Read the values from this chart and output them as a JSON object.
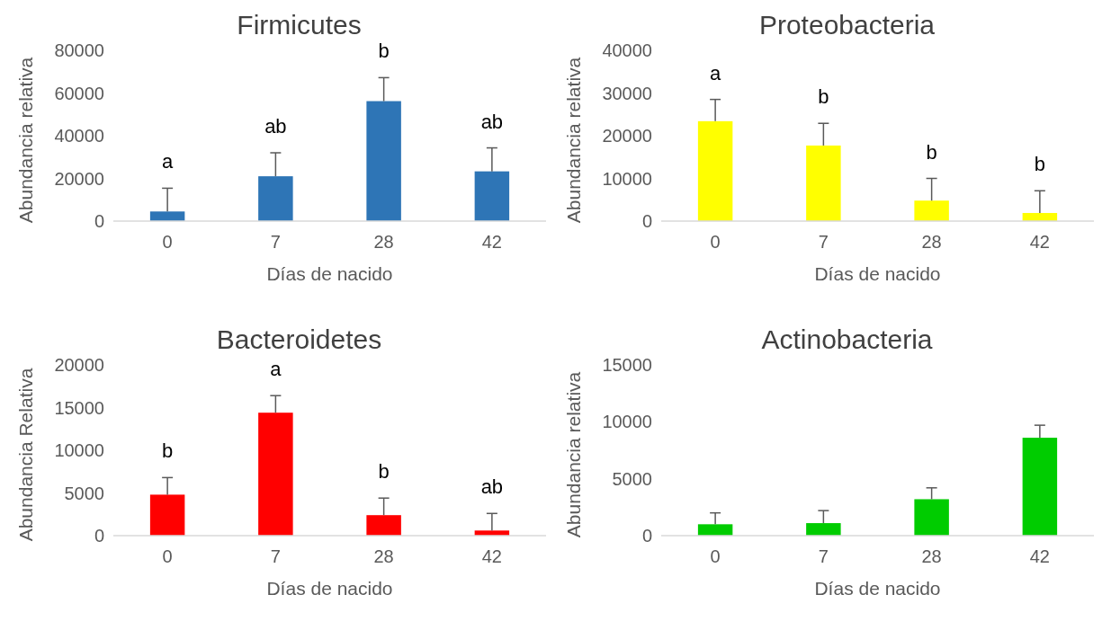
{
  "chart_data": [
    {
      "type": "bar",
      "title": "Firmicutes",
      "xlabel": "Días de nacido",
      "ylabel": "Abundancia relativa",
      "categories": [
        "0",
        "7",
        "28",
        "42"
      ],
      "color": "#2e75b6",
      "values": [
        4500,
        21000,
        56200,
        23300
      ],
      "errors": [
        [
          4500,
          15400
        ],
        [
          21000,
          32000
        ],
        [
          56200,
          67200
        ],
        [
          23300,
          34300
        ]
      ],
      "ylim": [
        0,
        80000
      ],
      "yticks": [
        0,
        20000,
        40000,
        60000,
        80000
      ],
      "annotations": [
        "a",
        "ab",
        "b",
        "ab"
      ]
    },
    {
      "type": "bar",
      "title": "Proteobacteria",
      "xlabel": "Días de nacido",
      "ylabel": "Abundancia relativa",
      "categories": [
        "0",
        "7",
        "28",
        "42"
      ],
      "color": "#ffff00",
      "values": [
        23400,
        17700,
        4800,
        1900
      ],
      "errors": [
        [
          23400,
          28500
        ],
        [
          17700,
          22900
        ],
        [
          4800,
          10000
        ],
        [
          1900,
          7100
        ]
      ],
      "ylim": [
        0,
        40000
      ],
      "yticks": [
        0,
        10000,
        20000,
        30000,
        40000
      ],
      "annotations": [
        "a",
        "b",
        "b",
        "b"
      ]
    },
    {
      "type": "bar",
      "title": "Bacteroidetes",
      "xlabel": "Días de nacido",
      "ylabel": "Abundancia Relativa",
      "categories": [
        "0",
        "7",
        "28",
        "42"
      ],
      "color": "#ff0000",
      "values": [
        4800,
        14400,
        2400,
        600
      ],
      "errors": [
        [
          4800,
          6800
        ],
        [
          14400,
          16400
        ],
        [
          2400,
          4400
        ],
        [
          600,
          2600
        ]
      ],
      "ylim": [
        0,
        20000
      ],
      "yticks": [
        0,
        5000,
        10000,
        15000,
        20000
      ],
      "annotations": [
        "b",
        "a",
        "b",
        "ab"
      ]
    },
    {
      "type": "bar",
      "title": "Actinobacteria",
      "xlabel": "Días de nacido",
      "ylabel": "Abundancia relativa",
      "categories": [
        "0",
        "7",
        "28",
        "42"
      ],
      "color": "#00cc00",
      "values": [
        1000,
        1100,
        3200,
        8600
      ],
      "errors": [
        [
          1000,
          2000
        ],
        [
          1100,
          2200
        ],
        [
          3200,
          4200
        ],
        [
          8600,
          9700
        ]
      ],
      "ylim": [
        0,
        15000
      ],
      "yticks": [
        0,
        5000,
        10000,
        15000
      ]
    }
  ]
}
